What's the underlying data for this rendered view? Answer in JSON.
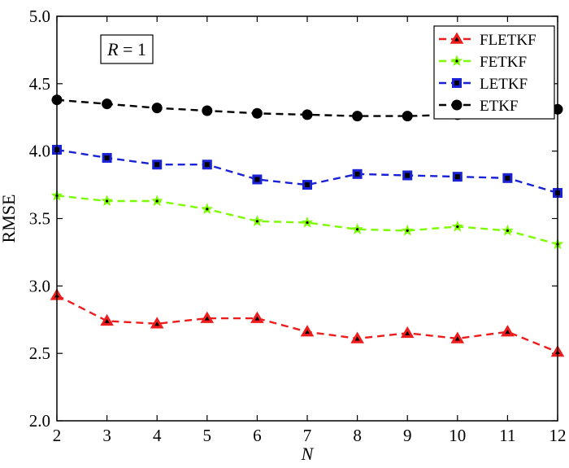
{
  "chart_data": {
    "type": "line",
    "title": "",
    "xlabel": "N",
    "ylabel": "RMSE",
    "xlim": [
      2,
      12
    ],
    "ylim": [
      2.0,
      5.0
    ],
    "x_ticks": [
      "2",
      "3",
      "4",
      "5",
      "6",
      "7",
      "8",
      "9",
      "10",
      "11",
      "12"
    ],
    "y_ticks": [
      "2.0",
      "2.5",
      "3.0",
      "3.5",
      "4.0",
      "4.5",
      "5.0"
    ],
    "grid": false,
    "legend_position": "top-right",
    "annotation": {
      "var": "R",
      "rest": " = 1"
    },
    "x": [
      2,
      3,
      4,
      5,
      6,
      7,
      8,
      9,
      10,
      11,
      12
    ],
    "series": [
      {
        "name": "FLETKF",
        "color": "#ee1c1c",
        "marker": "triangle",
        "values": [
          2.93,
          2.74,
          2.72,
          2.76,
          2.76,
          2.66,
          2.61,
          2.65,
          2.61,
          2.66,
          2.51
        ]
      },
      {
        "name": "FETKF",
        "color": "#7cfc00",
        "marker": "star",
        "values": [
          3.67,
          3.63,
          3.63,
          3.57,
          3.48,
          3.47,
          3.42,
          3.41,
          3.44,
          3.41,
          3.31
        ]
      },
      {
        "name": "LETKF",
        "color": "#1a22d6",
        "marker": "square",
        "values": [
          4.01,
          3.95,
          3.9,
          3.9,
          3.79,
          3.75,
          3.83,
          3.82,
          3.81,
          3.8,
          3.69
        ]
      },
      {
        "name": "ETKF",
        "color": "#000000",
        "marker": "circle",
        "values": [
          4.38,
          4.35,
          4.32,
          4.3,
          4.28,
          4.27,
          4.26,
          4.26,
          4.27,
          4.28,
          4.31
        ]
      }
    ]
  }
}
